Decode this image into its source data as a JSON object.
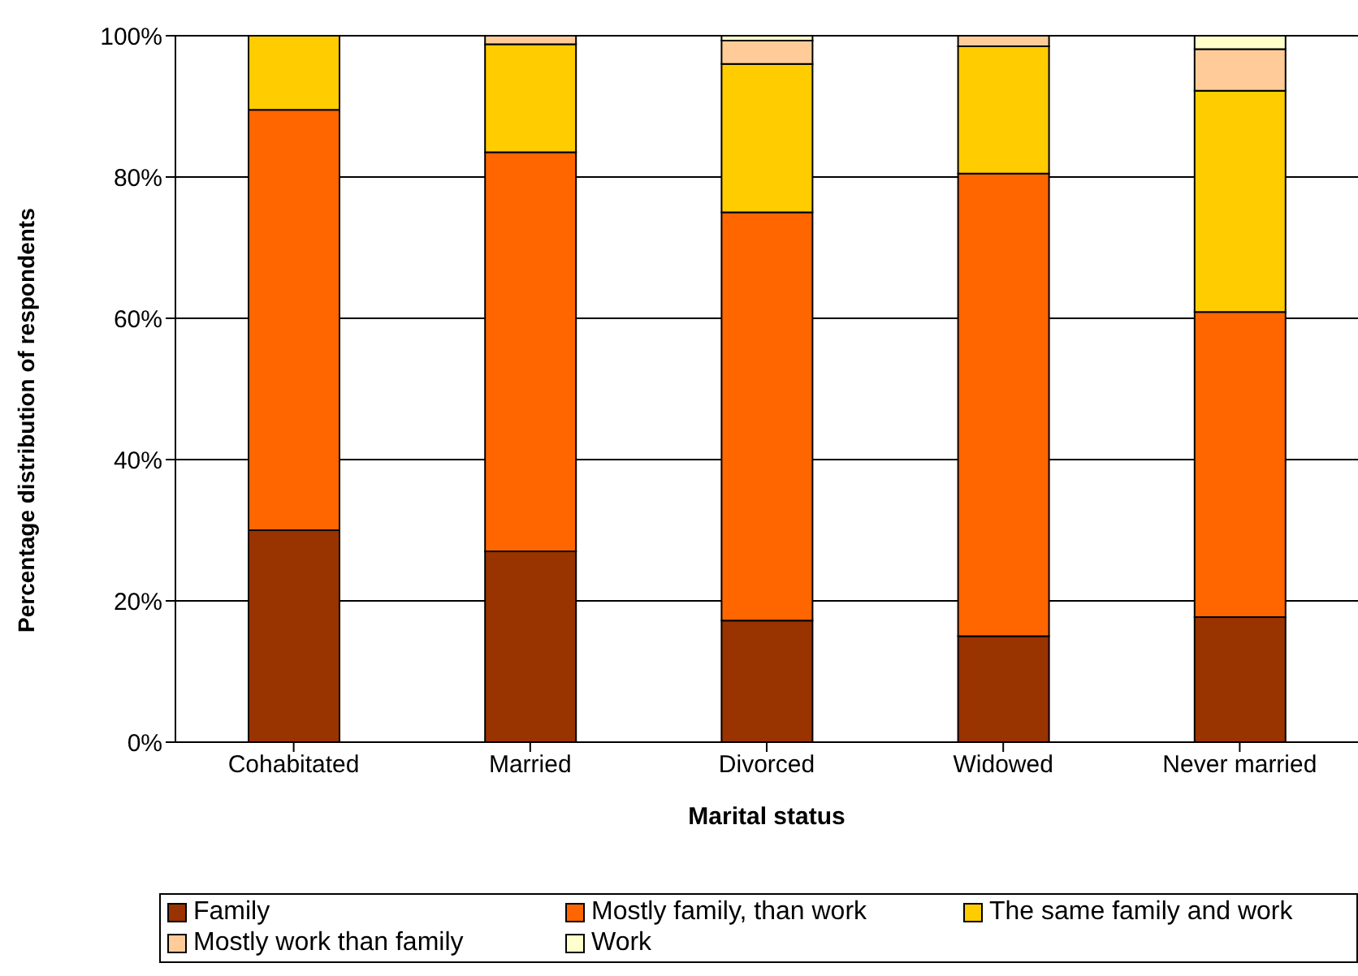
{
  "chart_data": {
    "type": "bar",
    "stacked": true,
    "xlabel": "Marital status",
    "ylabel": "Percentage distribution of respondents",
    "categories": [
      "Cohabitated",
      "Married",
      "Divorced",
      "Widowed",
      "Never married"
    ],
    "series": [
      {
        "name": "Family",
        "color": "#993300",
        "values": [
          30,
          27,
          17.2,
          15,
          17.7
        ]
      },
      {
        "name": "Mostly family, than work",
        "color": "#ff6600",
        "values": [
          59.5,
          56.5,
          57.8,
          65.5,
          43.2
        ]
      },
      {
        "name": "The same family and work",
        "color": "#ffcc00",
        "values": [
          10.5,
          15.3,
          21,
          18,
          31.3
        ]
      },
      {
        "name": "Mostly work than family",
        "color": "#ffcc99",
        "values": [
          0,
          1.2,
          3.3,
          1.5,
          5.9
        ]
      },
      {
        "name": "Work",
        "color": "#ffffcc",
        "values": [
          0,
          0,
          0.7,
          0,
          1.9
        ]
      }
    ],
    "ylim": [
      0,
      100
    ],
    "yticks": [
      {
        "value": 0,
        "label": "0%"
      },
      {
        "value": 20,
        "label": "20%"
      },
      {
        "value": 40,
        "label": "40%"
      },
      {
        "value": 60,
        "label": "60%"
      },
      {
        "value": 80,
        "label": "80%"
      },
      {
        "value": 100,
        "label": "100%"
      }
    ],
    "grid": "y",
    "legend": "bottom"
  }
}
